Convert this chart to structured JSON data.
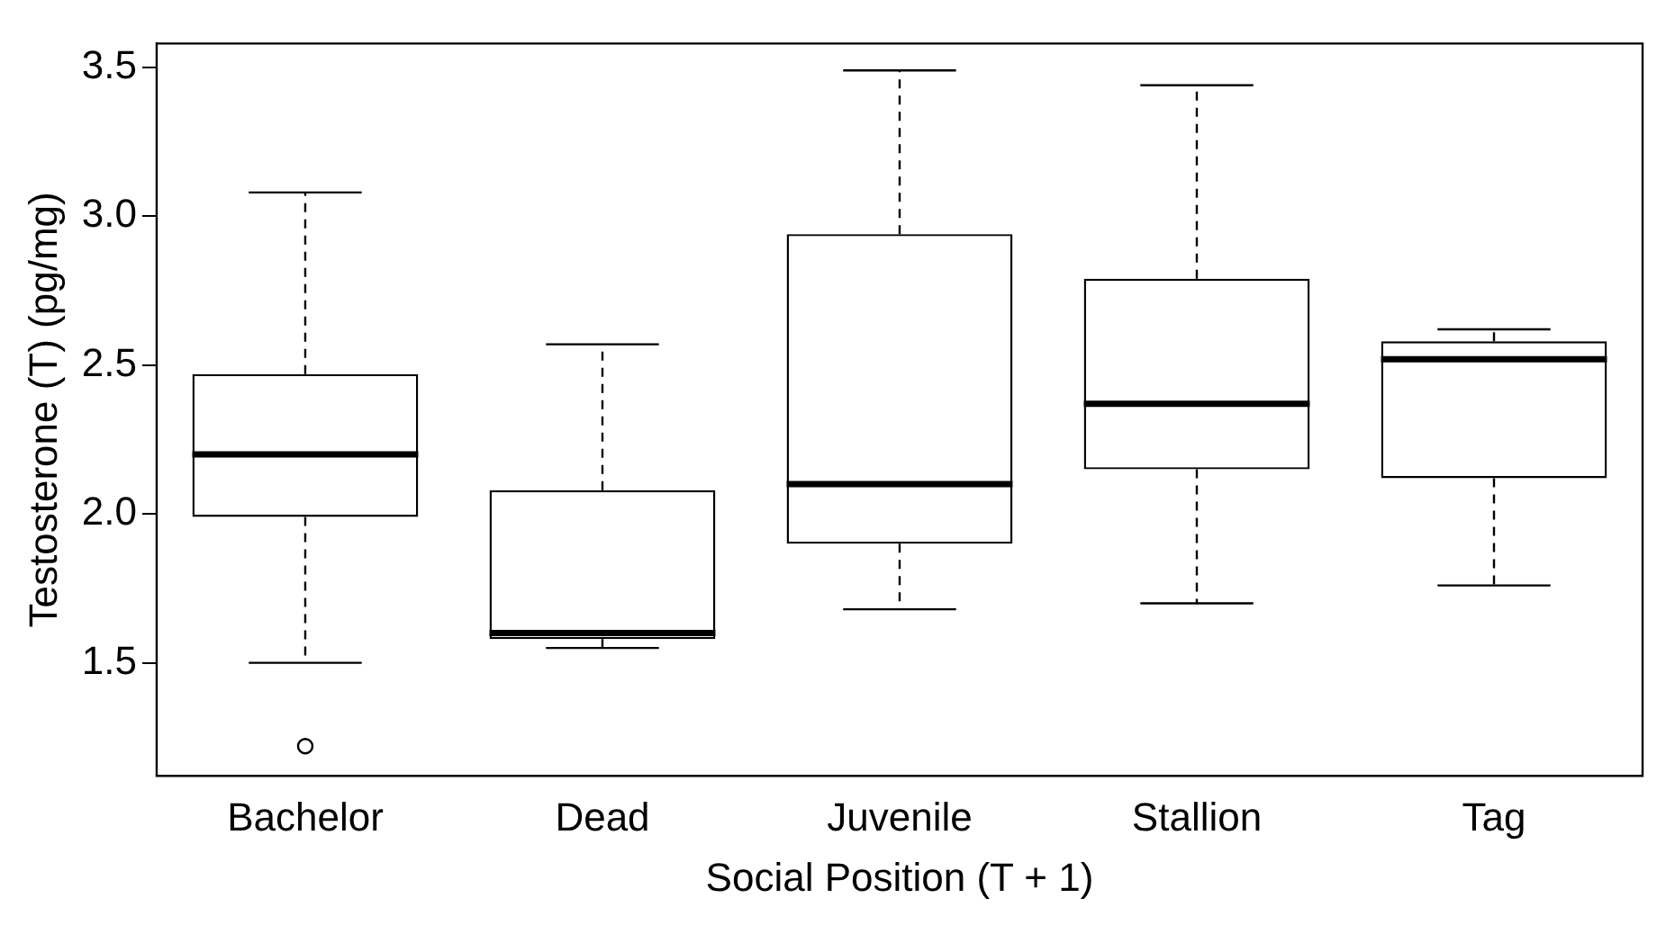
{
  "chart_data": {
    "type": "box",
    "xlabel": "Social Position (T + 1)",
    "ylabel": "Testosterone (T) (pg/mg)",
    "categories": [
      "Bachelor",
      "Dead",
      "Juvenile",
      "Stallion",
      "Tag"
    ],
    "boxes": [
      {
        "low": 1.5,
        "q1": 1.99,
        "median": 2.2,
        "q3": 2.47,
        "high": 3.08,
        "outliers": [
          1.22
        ]
      },
      {
        "low": 1.55,
        "q1": 1.58,
        "median": 1.6,
        "q3": 2.08,
        "high": 2.57
      },
      {
        "low": 1.68,
        "q1": 1.9,
        "median": 2.1,
        "q3": 2.94,
        "high": 3.49
      },
      {
        "low": 1.7,
        "q1": 2.15,
        "median": 2.37,
        "q3": 2.79,
        "high": 3.44
      },
      {
        "low": 1.76,
        "q1": 2.12,
        "median": 2.52,
        "q3": 2.58,
        "high": 2.62
      }
    ],
    "color": "#000000",
    "ylim": [
      1.12,
      3.58
    ],
    "yticks": [
      {
        "value": 1.5,
        "label": "1.5"
      },
      {
        "value": 2,
        "label": "2.0"
      },
      {
        "value": 2.5,
        "label": "2.5"
      },
      {
        "value": 3,
        "label": "3.0"
      },
      {
        "value": 3.5,
        "label": "3.5"
      }
    ],
    "grid": false,
    "legend": false
  }
}
